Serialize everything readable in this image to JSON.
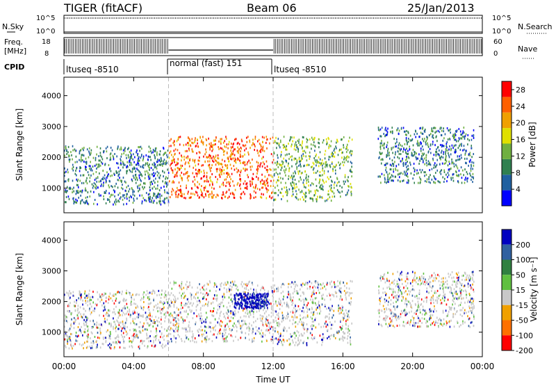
{
  "header": {
    "title": "TIGER (fitACF)",
    "beam": "Beam 06",
    "date": "25/Jan/2013"
  },
  "status_panels": {
    "nsky": {
      "label": "N.Sky",
      "left_ticks": [
        "10^5",
        "10^0"
      ],
      "right_ticks": [
        "10^5",
        "10^0"
      ],
      "right_label": "N.Search"
    },
    "freq": {
      "label_lines": [
        "Freq.",
        "[MHz]"
      ],
      "left_ticks": [
        "18",
        "8"
      ],
      "right_ticks": [
        "60",
        "0"
      ],
      "right_label": "Nave"
    },
    "cpid": {
      "label": "CPID",
      "segments": [
        {
          "name": "ltuseq -8510",
          "start": 0,
          "end": 6
        },
        {
          "name": "normal (fast) 151",
          "start": 6,
          "end": 12
        },
        {
          "name": "ltuseq -8510",
          "start": 12,
          "end": 24
        }
      ]
    }
  },
  "chart_data": [
    {
      "type": "heatmap",
      "title": "",
      "xlabel": "Time UT",
      "ylabel": "Slant Range [km]",
      "xlim": [
        0,
        24
      ],
      "ylim": [
        200,
        4600
      ],
      "yticks": [
        1000,
        2000,
        3000,
        4000
      ],
      "colorbar": {
        "label": "Power [dB]",
        "ticks": [
          4,
          8,
          12,
          16,
          20,
          24,
          28
        ],
        "range": [
          0,
          30
        ],
        "colors": [
          "#0000ff",
          "#2060a0",
          "#308050",
          "#70b040",
          "#e0e000",
          "#f0a000",
          "#ff6000",
          "#ff0000"
        ]
      },
      "regions": [
        {
          "t0": 0.0,
          "t1": 6.0,
          "r0": 500,
          "r1": 2400,
          "dominant": 8
        },
        {
          "t0": 6.0,
          "t1": 12.0,
          "r0": 700,
          "r1": 2700,
          "dominant": 24
        },
        {
          "t0": 12.0,
          "t1": 16.5,
          "r0": 600,
          "r1": 2700,
          "dominant": 12
        },
        {
          "t0": 18.0,
          "t1": 23.5,
          "r0": 1200,
          "r1": 3000,
          "dominant": 8
        }
      ]
    },
    {
      "type": "heatmap",
      "title": "",
      "xlabel": "Time UT",
      "ylabel": "Slant Range [km]",
      "xlim": [
        0,
        24
      ],
      "ylim": [
        200,
        4600
      ],
      "yticks": [
        1000,
        2000,
        3000,
        4000
      ],
      "colorbar": {
        "label": "Velocity [m s⁻¹]",
        "ticks": [
          200,
          100,
          50,
          15,
          -15,
          -50,
          -100,
          -200
        ],
        "colors": [
          "#0000c0",
          "#3060a0",
          "#308040",
          "#60c040",
          "#c8c8c8",
          "#f0a000",
          "#ff7000",
          "#ff0000"
        ]
      },
      "regions": [
        {
          "t0": 0.0,
          "t1": 6.0,
          "r0": 500,
          "r1": 2400,
          "dominant": 0
        },
        {
          "t0": 6.0,
          "t1": 12.0,
          "r0": 700,
          "r1": 2700,
          "dominant": 0
        },
        {
          "t0": 9.7,
          "t1": 11.7,
          "r0": 1800,
          "r1": 2300,
          "dominant": 200
        },
        {
          "t0": 12.0,
          "t1": 16.5,
          "r0": 600,
          "r1": 2700,
          "dominant": 0
        },
        {
          "t0": 18.0,
          "t1": 23.5,
          "r0": 1200,
          "r1": 3000,
          "dominant": 0
        }
      ]
    }
  ],
  "x_axis": {
    "ticks": [
      "00:00",
      "04:00",
      "08:00",
      "12:00",
      "16:00",
      "20:00",
      "00:00"
    ],
    "label": "Time UT"
  }
}
